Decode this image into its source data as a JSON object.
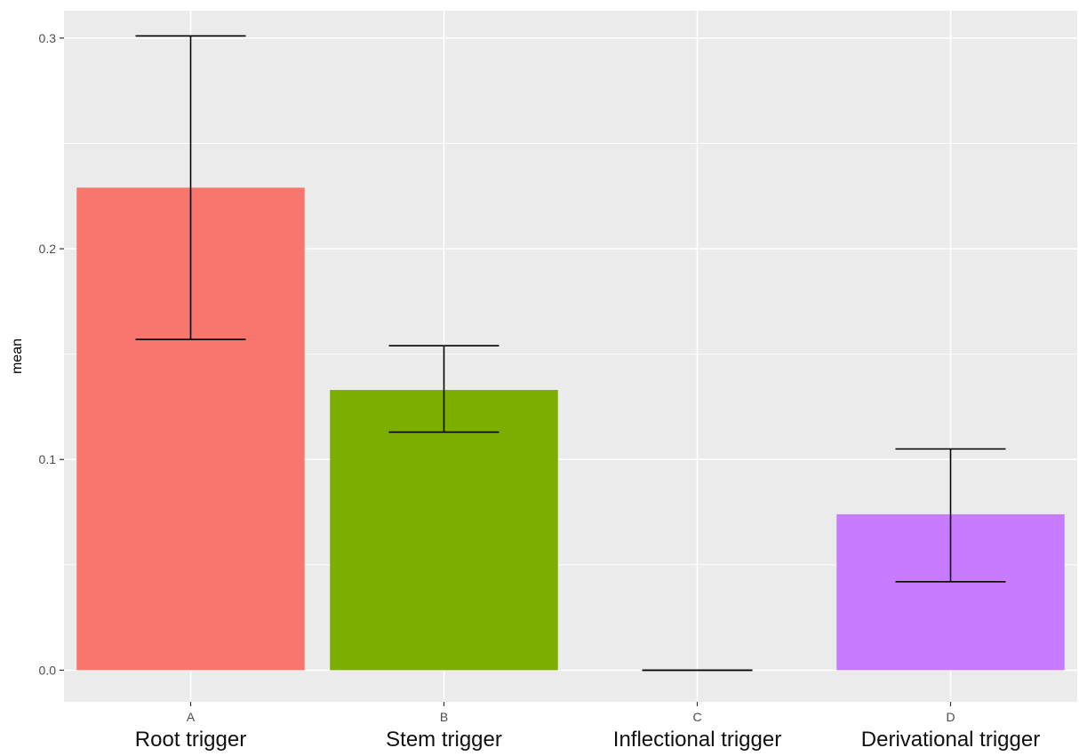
{
  "chart_data": {
    "type": "bar",
    "title": "",
    "xlabel": "",
    "ylabel": "mean",
    "categories": [
      "A",
      "B",
      "C",
      "D"
    ],
    "category_names": [
      "Root trigger",
      "Stem trigger",
      "Inflectional trigger",
      "Derivational trigger"
    ],
    "values": [
      0.229,
      0.133,
      0.0,
      0.074
    ],
    "error_lower": [
      0.157,
      0.113,
      0.0,
      0.042
    ],
    "error_upper": [
      0.301,
      0.154,
      0.0,
      0.105
    ],
    "colors": [
      "#f8766d",
      "#7cae00",
      "#00bfc4",
      "#c77cff"
    ],
    "ylim": [
      -0.015,
      0.313
    ],
    "y_ticks": [
      0.0,
      0.1,
      0.2,
      0.3
    ],
    "y_tick_labels": [
      "0.0",
      "0.1",
      "0.2",
      "0.3"
    ],
    "grid": true,
    "background": "#ebebeb",
    "grid_color": "#ffffff",
    "legend": "none"
  }
}
